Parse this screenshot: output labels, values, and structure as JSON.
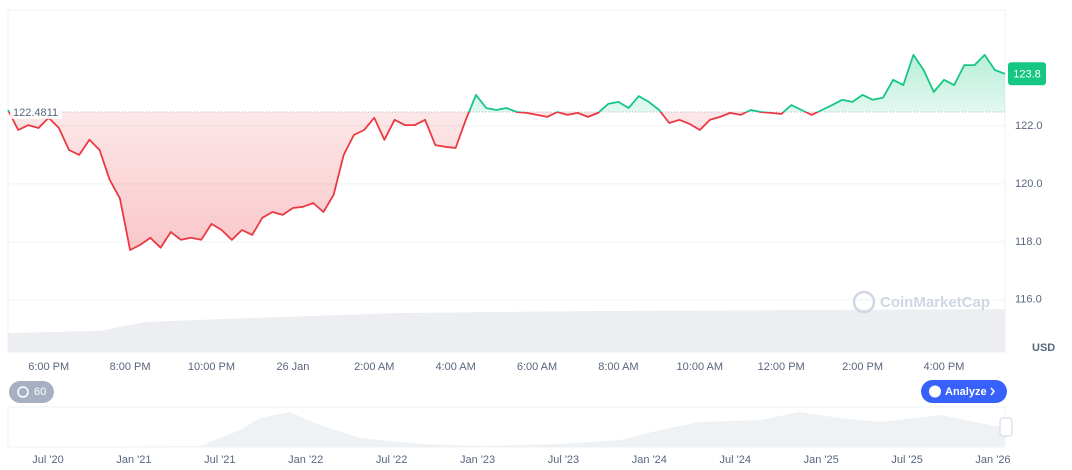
{
  "chart_data": {
    "type": "line",
    "categories_note_free": null,
    "xlim": [
      0,
      98
    ],
    "xticks": [
      {
        "value": 4,
        "label": "6:00 PM"
      },
      {
        "value": 12,
        "label": "8:00 PM"
      },
      {
        "value": 20,
        "label": "10:00 PM"
      },
      {
        "value": 28,
        "label": "26 Jan"
      },
      {
        "value": 36,
        "label": "2:00 AM"
      },
      {
        "value": 44,
        "label": "4:00 AM"
      },
      {
        "value": 52,
        "label": "6:00 AM"
      },
      {
        "value": 60,
        "label": "8:00 AM"
      },
      {
        "value": 68,
        "label": "10:00 AM"
      },
      {
        "value": 76,
        "label": "12:00 PM"
      },
      {
        "value": 84,
        "label": "2:00 PM"
      },
      {
        "value": 92,
        "label": "4:00 PM"
      }
    ],
    "ylim": [
      114.2,
      126.0
    ],
    "yticks": [
      {
        "value": 116,
        "label": "116.0"
      },
      {
        "value": 118,
        "label": "118.0"
      },
      {
        "value": 120,
        "label": "120.0"
      },
      {
        "value": 122,
        "label": "122.0"
      }
    ],
    "y_axis_label": "USD",
    "grid": true,
    "baseline": 122.4811,
    "current_price": 123.8,
    "color_up": "#16c784",
    "color_down": "#ea3943",
    "watermark": "CoinMarketCap",
    "values": [
      122.55,
      121.86,
      122.03,
      121.93,
      122.28,
      121.93,
      121.17,
      121.0,
      121.52,
      121.17,
      120.14,
      119.5,
      117.72,
      117.9,
      118.14,
      117.8,
      118.34,
      118.07,
      118.14,
      118.07,
      118.62,
      118.41,
      118.07,
      118.41,
      118.24,
      118.83,
      119.03,
      118.93,
      119.17,
      119.21,
      119.34,
      119.03,
      119.62,
      121.0,
      121.69,
      121.86,
      122.28,
      121.52,
      122.21,
      122.03,
      122.03,
      122.21,
      121.34,
      121.28,
      121.24,
      122.21,
      123.07,
      122.62,
      122.55,
      122.62,
      122.48,
      122.45,
      122.38,
      122.31,
      122.48,
      122.38,
      122.45,
      122.31,
      122.45,
      122.76,
      122.83,
      122.62,
      123.03,
      122.83,
      122.55,
      122.1,
      122.21,
      122.07,
      121.86,
      122.21,
      122.31,
      122.45,
      122.38,
      122.55,
      122.48,
      122.45,
      122.41,
      122.72,
      122.55,
      122.38,
      122.55,
      122.72,
      122.9,
      122.83,
      123.07,
      122.9,
      122.97,
      123.59,
      123.41,
      124.45,
      123.93,
      123.17,
      123.59,
      123.41,
      124.1,
      124.1,
      124.45,
      123.93,
      123.8
    ]
  },
  "controls": {
    "interval": "60",
    "analyze": "Analyze"
  },
  "navigator": {
    "labels": [
      "Jul '20",
      "Jan '21",
      "Jul '21",
      "Jan '22",
      "Jul '22",
      "Jan '23",
      "Jul '23",
      "Jan '24",
      "Jul '24",
      "Jan '25",
      "Jul '25",
      "Jan '26"
    ]
  }
}
